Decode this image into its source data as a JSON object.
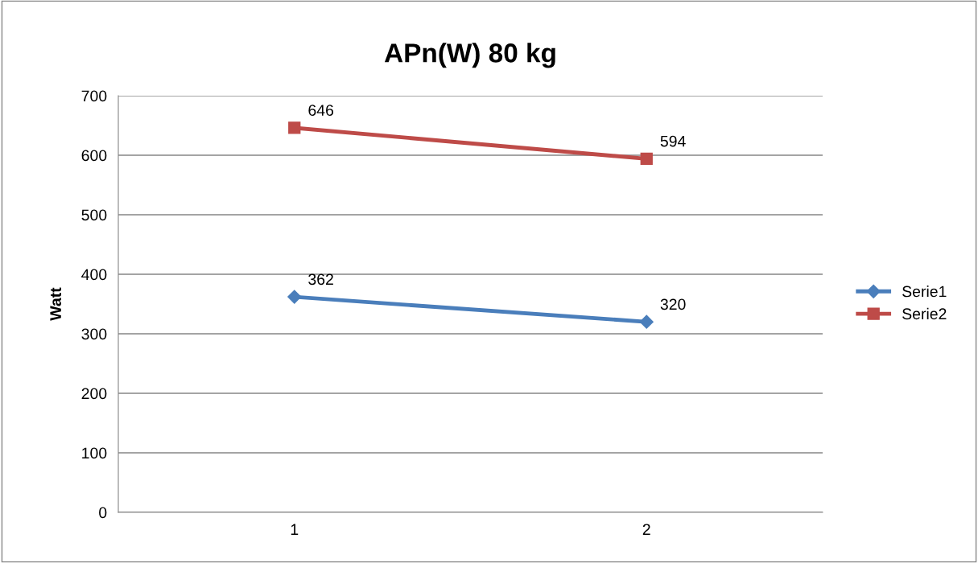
{
  "chart_data": {
    "type": "line",
    "title": "APn(W) 80 kg",
    "ylabel": "Watt",
    "categories": [
      "1",
      "2"
    ],
    "series": [
      {
        "name": "Serie1",
        "color": "#4a7ebb",
        "values": [
          362,
          320
        ],
        "marker": "diamond"
      },
      {
        "name": "Serie2",
        "color": "#be4b48",
        "values": [
          646,
          594
        ],
        "marker": "square"
      }
    ],
    "ylim": [
      0,
      700
    ],
    "yticks": [
      0,
      100,
      200,
      300,
      400,
      500,
      600,
      700
    ],
    "grid": "y",
    "legend": "right",
    "data_labels": true,
    "line_style": "solid"
  }
}
